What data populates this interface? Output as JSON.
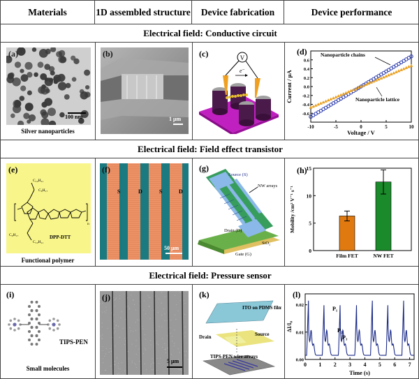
{
  "headers": [
    "Materials",
    "1D assembled structure",
    "Device fabrication",
    "Device performance"
  ],
  "bands": [
    "Electrical field: Conductive circuit",
    "Electrical field: Field effect transistor",
    "Electrical field: Pressure sensor"
  ],
  "panels": {
    "a": {
      "label": "(a)",
      "caption": "Silver nanoparticles",
      "scale": "100 nm"
    },
    "b": {
      "label": "(b)",
      "scale": "1 μm"
    },
    "c": {
      "label": "(c)",
      "meter": "V",
      "electron": "e⁻"
    },
    "d": {
      "label": "(d)",
      "chains_label": "Nanoparticle chains",
      "lattice_label": "Nanoparticle lattice"
    },
    "e": {
      "label": "(e)",
      "molecule": "DPP-DTT",
      "caption": "Functional polymer",
      "alkyl": [
        "C₁₀H₂₁",
        "C₈H₁₇",
        "C₈H₁₇",
        "C₁₀H₂₁"
      ],
      "n": "n"
    },
    "f": {
      "label": "(f)",
      "electrodes": [
        "S",
        "D",
        "S",
        "D"
      ],
      "scale": "50 μm"
    },
    "g": {
      "label": "(g)",
      "source": "Source (S)",
      "drain": "Drain (D)",
      "gate": "Gate (G)",
      "oxide": "SiO₂",
      "nw": "NW arrays"
    },
    "h": {
      "label": "(h)"
    },
    "i": {
      "label": "(i)",
      "molecule": "TIPS-PEN",
      "caption": "Small molecules"
    },
    "j": {
      "label": "(j)",
      "scale": "5 μm"
    },
    "k": {
      "label": "(k)",
      "top_film": "ITO on PDMS film",
      "drain": "Drain",
      "source": "Source",
      "wires": "TIPS-PEN wire arrays"
    },
    "l": {
      "label": "(l)",
      "p1": "P₁",
      "p2": "P₂",
      "p3": "P₃"
    }
  },
  "chart_data": [
    {
      "id": "d",
      "type": "line",
      "xlabel": "Voltage / V",
      "ylabel": "Current / μA",
      "xlim": [
        -10,
        10
      ],
      "ylim": [
        -0.8,
        0.8
      ],
      "xticks": [
        -10,
        -5,
        0,
        5,
        10
      ],
      "yticks": [
        -0.6,
        -0.4,
        -0.2,
        0.0,
        0.2,
        0.4,
        0.6
      ],
      "series": [
        {
          "name": "Nanoparticle chains",
          "color": "#2233aa",
          "marker": "circle-open",
          "slope": 0.068
        },
        {
          "name": "Nanoparticle lattice",
          "color": "#e8a020",
          "marker": "triangle",
          "slope": 0.047
        }
      ]
    },
    {
      "id": "h",
      "type": "bar",
      "ylabel": "Mobility /cm² V⁻¹ s⁻¹",
      "categories": [
        "Film FET",
        "NW FET"
      ],
      "values": [
        6.3,
        12.5
      ],
      "errors": [
        0.9,
        2.2
      ],
      "colors": [
        "#e07a10",
        "#1a8a2a"
      ],
      "ylim": [
        0,
        15
      ],
      "yticks": [
        0,
        5,
        10,
        15
      ]
    },
    {
      "id": "l",
      "type": "line",
      "xlabel": "Time (s)",
      "ylabel": "ΔI/I₀",
      "xlim": [
        0,
        7.3
      ],
      "ylim": [
        0,
        0.024
      ],
      "xticks": [
        0,
        1,
        2,
        3,
        4,
        5,
        6,
        7
      ],
      "yticks": [
        0.0,
        0.01,
        0.02
      ],
      "ytick_labels": [
        "0.00",
        "0.01",
        "0.02"
      ],
      "color": "#1a2a88",
      "peak_times": [
        0.22,
        1.27,
        2.35,
        3.45,
        4.5,
        5.55,
        6.6
      ],
      "peak_height": 0.02
    }
  ]
}
